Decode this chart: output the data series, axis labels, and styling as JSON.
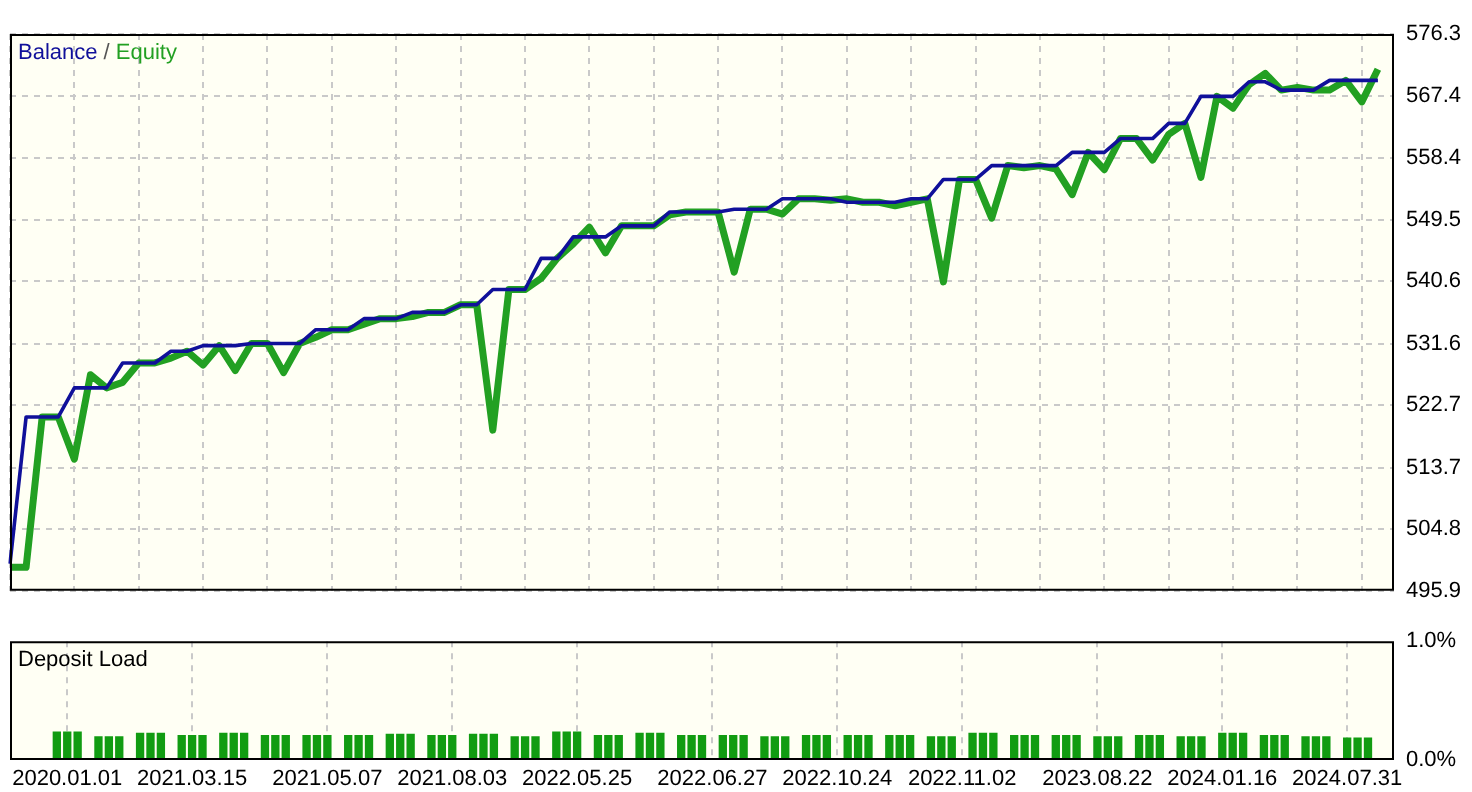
{
  "chart_data": [
    {
      "type": "line",
      "legend": "top left",
      "tick_labels": "y",
      "grid": true,
      "annotations": [
        "/"
      ],
      "categories": [
        null,
        null,
        null,
        null,
        null,
        null,
        null,
        null,
        null,
        null,
        null,
        null,
        null,
        null,
        null,
        null,
        null,
        null,
        null,
        null,
        null,
        null,
        null,
        null,
        null,
        null,
        null,
        null,
        null,
        null,
        null,
        null,
        null,
        null,
        null,
        null,
        null,
        null,
        null,
        null,
        null,
        null,
        null,
        null,
        null,
        null,
        null,
        null,
        null,
        null,
        null,
        null,
        null,
        null,
        null,
        null,
        null,
        null,
        null,
        null,
        null,
        null,
        null,
        null,
        null,
        null,
        null,
        null,
        null,
        null,
        null,
        null,
        null,
        null,
        null,
        null,
        null,
        null,
        null,
        null,
        null,
        null,
        null,
        null,
        null,
        null,
        null
      ],
      "ylim": [
        495.9,
        576.3
      ],
      "yticks": [
        495.9,
        504.8,
        513.7,
        522.7,
        531.6,
        540.6,
        549.5,
        558.4,
        567.4,
        576.3
      ],
      "series": [
        {
          "name": "Balance",
          "color": "#10109a",
          "values": [
            499.8,
            521.0,
            521.0,
            521.0,
            525.2,
            525.2,
            525.2,
            528.8,
            528.8,
            528.8,
            530.5,
            530.5,
            531.3,
            531.3,
            531.3,
            531.6,
            531.6,
            531.6,
            531.6,
            533.6,
            533.6,
            533.6,
            535.2,
            535.2,
            535.2,
            536.1,
            536.1,
            536.1,
            537.2,
            537.2,
            539.4,
            539.4,
            539.4,
            543.9,
            543.9,
            547.0,
            547.0,
            547.0,
            548.6,
            548.6,
            548.6,
            550.6,
            550.6,
            550.6,
            550.6,
            551.0,
            551.0,
            551.0,
            552.5,
            552.5,
            552.5,
            552.5,
            552.0,
            552.0,
            552.0,
            552.0,
            552.5,
            552.5,
            555.3,
            555.3,
            555.3,
            557.3,
            557.3,
            557.3,
            557.3,
            557.3,
            559.2,
            559.2,
            559.2,
            561.2,
            561.2,
            561.2,
            563.4,
            563.4,
            567.3,
            567.3,
            567.3,
            569.4,
            569.4,
            568.2,
            568.2,
            568.2,
            569.6,
            569.6,
            569.6,
            569.6,
            null
          ]
        },
        {
          "name": "Equity",
          "color": "#22a022",
          "values": [
            499.3,
            499.3,
            521.0,
            521.0,
            514.9,
            527.1,
            525.2,
            526.0,
            528.8,
            528.8,
            529.5,
            530.5,
            528.5,
            531.3,
            527.7,
            531.6,
            531.6,
            527.4,
            531.6,
            532.5,
            533.6,
            533.6,
            534.4,
            535.2,
            535.2,
            535.5,
            536.1,
            536.1,
            537.2,
            537.2,
            519.1,
            539.4,
            539.4,
            541.0,
            543.9,
            546.0,
            548.4,
            544.7,
            548.6,
            548.6,
            548.6,
            550.2,
            550.6,
            550.6,
            550.6,
            541.9,
            551.0,
            551.0,
            550.3,
            552.5,
            552.5,
            552.3,
            552.5,
            552.0,
            552.0,
            551.5,
            552.0,
            552.5,
            540.5,
            555.3,
            555.3,
            549.7,
            557.3,
            557.0,
            557.3,
            556.8,
            553.1,
            559.2,
            556.7,
            561.2,
            561.2,
            558.1,
            561.8,
            563.4,
            555.6,
            567.3,
            565.6,
            569.0,
            570.6,
            568.2,
            568.6,
            568.2,
            568.2,
            569.6,
            566.5,
            571.2,
            null
          ]
        }
      ]
    },
    {
      "type": "bar",
      "title": "Deposit Load",
      "grid": "x",
      "color": "#119c11",
      "categories": [
        null,
        null,
        null,
        null,
        null,
        "2020.01.01",
        null,
        null,
        null,
        null,
        null,
        null,
        null,
        null,
        null,
        null,
        null,
        "2021.03.15",
        null,
        null,
        null,
        null,
        null,
        null,
        null,
        null,
        null,
        null,
        null,
        null,
        "2021.05.07",
        null,
        null,
        null,
        null,
        null,
        null,
        null,
        null,
        null,
        null,
        null,
        "2021.08.03",
        null,
        null,
        null,
        null,
        null,
        null,
        null,
        null,
        null,
        null,
        null,
        "2022.05.25",
        null,
        null,
        null,
        null,
        null,
        null,
        null,
        null,
        null,
        null,
        null,
        null,
        "2022.06.27",
        null,
        null,
        null,
        null,
        null,
        null,
        null,
        null,
        null,
        null,
        null,
        "2022.10.24",
        null,
        null,
        null,
        null,
        null,
        null,
        null,
        null,
        null,
        null,
        null,
        "2022.11.02",
        null,
        null,
        null,
        null,
        null,
        null,
        null,
        null,
        null,
        null,
        null,
        null,
        "2023.08.22",
        null,
        null,
        null,
        null,
        null,
        null,
        null,
        null,
        null,
        null,
        null,
        "2024.01.16",
        null,
        null,
        null,
        null,
        null,
        null,
        null,
        null,
        null,
        null,
        null,
        "2024.07.31",
        null,
        null,
        null,
        null
      ],
      "values": [
        null,
        null,
        null,
        null,
        0.24,
        0.24,
        0.24,
        null,
        0.2,
        0.2,
        0.2,
        null,
        0.23,
        0.23,
        0.23,
        null,
        0.21,
        0.21,
        0.21,
        null,
        0.23,
        0.23,
        0.23,
        null,
        0.21,
        0.21,
        0.21,
        null,
        0.21,
        0.21,
        0.21,
        null,
        0.21,
        0.21,
        0.21,
        null,
        0.22,
        0.22,
        0.22,
        null,
        0.21,
        0.21,
        0.21,
        null,
        0.22,
        0.22,
        0.22,
        null,
        0.2,
        0.2,
        0.2,
        null,
        0.24,
        0.24,
        0.24,
        null,
        0.21,
        0.21,
        0.21,
        null,
        0.23,
        0.23,
        0.23,
        null,
        0.21,
        0.21,
        0.21,
        null,
        0.21,
        0.21,
        0.21,
        null,
        0.2,
        0.2,
        0.2,
        null,
        0.21,
        0.21,
        0.21,
        null,
        0.21,
        0.21,
        0.21,
        null,
        0.21,
        0.21,
        0.21,
        null,
        0.2,
        0.2,
        0.2,
        null,
        0.23,
        0.23,
        0.23,
        null,
        0.21,
        0.21,
        0.21,
        null,
        0.21,
        0.21,
        0.21,
        null,
        0.2,
        0.2,
        0.2,
        null,
        0.21,
        0.21,
        0.21,
        null,
        0.2,
        0.2,
        0.2,
        null,
        0.23,
        0.23,
        0.23,
        null,
        0.21,
        0.21,
        0.21,
        null,
        0.2,
        0.2,
        0.2,
        null,
        0.19,
        0.19,
        0.19,
        null,
        null
      ],
      "ylim": [
        0,
        1
      ],
      "yticks": [
        {
          "value": 0,
          "label": "0.0%"
        },
        {
          "value": 1,
          "label": "1.0%"
        }
      ]
    }
  ]
}
